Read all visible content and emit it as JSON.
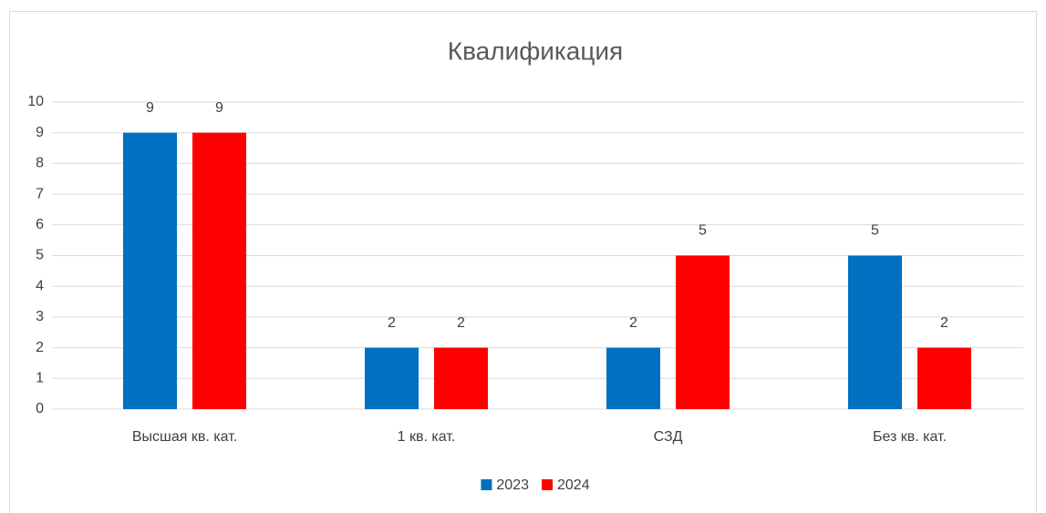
{
  "chart_data": {
    "type": "bar",
    "title": "Квалификация",
    "categories": [
      "Высшая кв. кат.",
      "1 кв. кат.",
      "СЗД",
      "Без кв. кат."
    ],
    "series": [
      {
        "name": "2023",
        "color": "#0070c0",
        "values": [
          9,
          2,
          2,
          5
        ]
      },
      {
        "name": "2024",
        "color": "#ff0000",
        "values": [
          9,
          2,
          5,
          2
        ]
      }
    ],
    "ylim": [
      0,
      10
    ],
    "yticks": [
      0,
      1,
      2,
      3,
      4,
      5,
      6,
      7,
      8,
      9,
      10
    ],
    "grid": true,
    "legend": "bottom"
  }
}
